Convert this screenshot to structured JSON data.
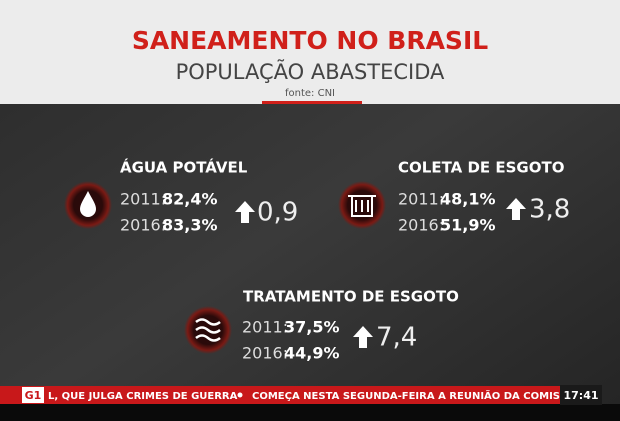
{
  "header": {
    "title": "SANEAMENTO NO BRASIL",
    "subtitle": "POPULAÇÃO ABASTECIDA",
    "source": "fonte: CNI"
  },
  "stats": [
    {
      "label": "ÁGUA POTÁVEL",
      "rows": [
        {
          "year": "2011:",
          "value": "82,4%"
        },
        {
          "year": "2016:",
          "value": "83,3%"
        }
      ],
      "change": "0,9"
    },
    {
      "label": "COLETA DE ESGOTO",
      "rows": [
        {
          "year": "2011:",
          "value": "48,1%"
        },
        {
          "year": "2016:",
          "value": "51,9%"
        }
      ],
      "change": "3,8"
    },
    {
      "label": "TRATAMENTO DE ESGOTO",
      "rows": [
        {
          "year": "2011:",
          "value": "37,5%"
        },
        {
          "year": "2016:",
          "value": "44,9%"
        }
      ],
      "change": "7,4"
    }
  ],
  "ticker": {
    "logo": "G1",
    "items": [
      "L, QUE JULGA CRIMES DE GUERRA",
      "COMEÇA NESTA SEGUNDA-FEIRA A REUNIÃO DA COMISSÃO"
    ],
    "time": "17:41"
  }
}
